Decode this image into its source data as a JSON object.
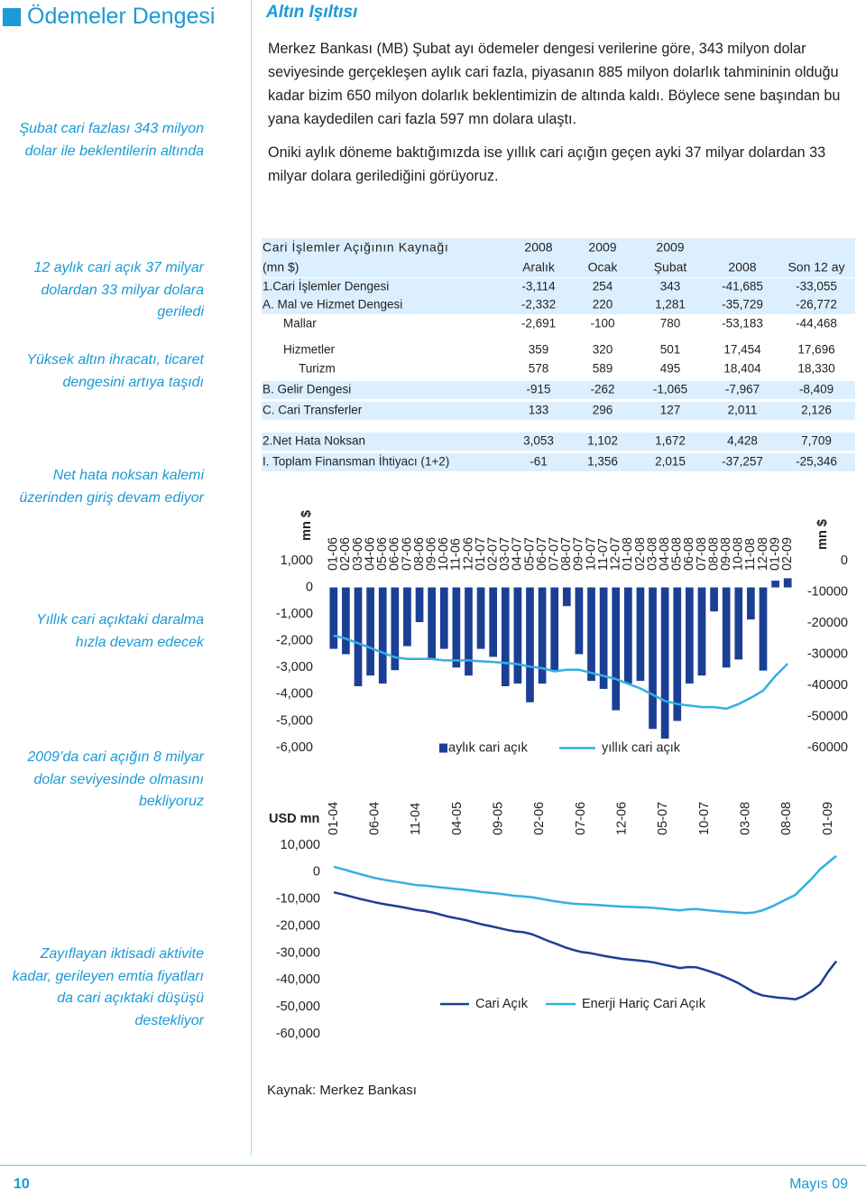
{
  "header": {
    "title": "Ödemeler Dengesi",
    "section": "Altın Işıltısı"
  },
  "paragraphs": [
    "Merkez Bankası (MB) Şubat ayı ödemeler dengesi verilerine göre, 343 milyon dolar seviyesinde gerçekleşen aylık cari fazla, piyasanın 885 milyon dolarlık tahmininin olduğu kadar bizim 650 milyon dolarlık beklentimizin de altında kaldı. Böylece sene başından bu yana kaydedilen cari fazla 597 mn dolara ulaştı.",
    "Oniki aylık döneme baktığımızda ise yıllık cari açığın geçen ayki 37 milyar dolardan 33 milyar dolara gerilediğini görüyoruz."
  ],
  "notes": [
    "Şubat cari fazlası 343 milyon dolar ile beklentilerin altında",
    "12 aylık cari açık 37 milyar dolardan 33 milyar dolara geriledi",
    "Yüksek altın ihracatı, ticaret dengesini artıya taşıdı",
    "Net hata noksan kalemi üzerinden giriş devam ediyor",
    "Yıllık cari açıktaki daralma hızla devam edecek",
    "2009’da cari açığın 8 milyar dolar seviyesinde olmasını bekliyoruz",
    "Zayıflayan iktisadi aktivite kadar, gerileyen emtia fiyatları da cari açıktaki düşüşü destekliyor"
  ],
  "table": {
    "columns": [
      {
        "top": "Cari İşlemler Açığının Kaynağı",
        "bottom": "(mn $)"
      },
      {
        "top": "2008",
        "bottom": "Aralık"
      },
      {
        "top": "2009",
        "bottom": "Ocak"
      },
      {
        "top": "2009",
        "bottom": "Şubat"
      },
      {
        "bottom": "2008"
      },
      {
        "bottom": "Son 12 ay"
      }
    ],
    "rows": [
      [
        "1.Cari İşlemler Dengesi",
        "-3,114",
        "254",
        "343",
        "-41,685",
        "-33,055"
      ],
      [
        "A. Mal ve Hizmet Dengesi",
        "-2,332",
        "220",
        "1,281",
        "-35,729",
        "-26,772"
      ],
      [
        "Mallar",
        "-2,691",
        "-100",
        "780",
        "-53,183",
        "-44,468"
      ],
      [
        "Hizmetler",
        "359",
        "320",
        "501",
        "17,454",
        "17,696"
      ],
      [
        "Turizm",
        "578",
        "589",
        "495",
        "18,404",
        "18,330"
      ],
      [
        "B. Gelir Dengesi",
        "-915",
        "-262",
        "-1,065",
        "-7,967",
        "-8,409"
      ],
      [
        "C. Cari Transferler",
        "133",
        "296",
        "127",
        "2,011",
        "2,126"
      ],
      [
        "2.Net Hata Noksan",
        "3,053",
        "1,102",
        "1,672",
        "4,428",
        "7,709"
      ],
      [
        "I. Toplam Finansman İhtiyacı (1+2)",
        "-61",
        "1,356",
        "2,015",
        "-37,257",
        "-25,346"
      ]
    ]
  },
  "chart_data": [
    {
      "type": "combo",
      "y_label": "mn $",
      "y2_label": "mn $",
      "legend": "bottom",
      "categories": [
        "01-06",
        "02-06",
        "03-06",
        "04-06",
        "05-06",
        "06-06",
        "07-06",
        "08-06",
        "09-06",
        "10-06",
        "11-06",
        "12-06",
        "01-07",
        "02-07",
        "03-07",
        "04-07",
        "05-07",
        "06-07",
        "07-07",
        "08-07",
        "09-07",
        "10-07",
        "11-07",
        "12-07",
        "01-08",
        "02-08",
        "03-08",
        "04-08",
        "05-08",
        "06-08",
        "07-08",
        "08-08",
        "09-08",
        "10-08",
        "11-08",
        "12-08",
        "01-09",
        "02-09"
      ],
      "ylim": [
        -6000,
        1000
      ],
      "yticks": [
        {
          "value": 1000,
          "label": "1,000"
        },
        0,
        {
          "value": -1000,
          "label": "-1,000"
        },
        {
          "value": -2000,
          "label": "-2,000"
        },
        {
          "value": -3000,
          "label": "-3,000"
        },
        {
          "value": -4000,
          "label": "-4,000"
        },
        {
          "value": -5000,
          "label": "-5,000"
        },
        {
          "value": -6000,
          "label": "-6,000"
        }
      ],
      "y2lim": [
        -60000,
        0
      ],
      "y2ticks": [
        0,
        -10000,
        -20000,
        -30000,
        -40000,
        -50000,
        -60000
      ],
      "series": [
        {
          "name": "aylık cari açık",
          "type": "bar",
          "color": "#1b3f94",
          "values": [
            -2300,
            -2500,
            -3700,
            -3300,
            -3600,
            -3100,
            -2200,
            -1300,
            -2700,
            -2300,
            -3000,
            -3300,
            -2300,
            -2600,
            -3700,
            -3600,
            -4300,
            -3600,
            -3100,
            -700,
            -2500,
            -3500,
            -3800,
            -4600,
            -3600,
            -3500,
            -5300,
            -5700,
            -5000,
            -3600,
            -3300,
            -900,
            -3000,
            -2700,
            -1200,
            -3114,
            254,
            343
          ]
        },
        {
          "name": "yıllık cari açık",
          "type": "line",
          "axis": "y2",
          "color": "#35aee4",
          "values": [
            -24000,
            -25000,
            -26500,
            -28000,
            -29500,
            -31000,
            -31500,
            -31500,
            -31500,
            -32000,
            -32000,
            -32000,
            -32300,
            -32500,
            -32800,
            -33200,
            -34000,
            -34500,
            -35500,
            -35000,
            -35000,
            -36000,
            -37000,
            -38000,
            -39500,
            -41000,
            -43000,
            -45000,
            -46000,
            -46500,
            -47000,
            -47000,
            -47500,
            -46000,
            -44000,
            -41685,
            -37000,
            -33055
          ]
        }
      ]
    },
    {
      "type": "line",
      "y_label": "USD mn",
      "legend": "bottom",
      "categories": [
        "01-04",
        null,
        null,
        null,
        null,
        "06-04",
        null,
        null,
        null,
        null,
        "11-04",
        null,
        null,
        null,
        null,
        "04-05",
        null,
        null,
        null,
        null,
        "09-05",
        null,
        null,
        null,
        null,
        "02-06",
        null,
        null,
        null,
        null,
        "07-06",
        null,
        null,
        null,
        null,
        "12-06",
        null,
        null,
        null,
        null,
        "05-07",
        null,
        null,
        null,
        null,
        "10-07",
        null,
        null,
        null,
        null,
        "03-08",
        null,
        null,
        null,
        null,
        "08-08",
        null,
        null,
        null,
        null,
        "01-09",
        null
      ],
      "ylim": [
        -60000,
        10000
      ],
      "yticks": [
        {
          "value": 10000,
          "label": "10,000"
        },
        0,
        {
          "value": -10000,
          "label": "-10,000"
        },
        {
          "value": -20000,
          "label": "-20,000"
        },
        {
          "value": -30000,
          "label": "-30,000"
        },
        {
          "value": -40000,
          "label": "-40,000"
        },
        {
          "value": -50000,
          "label": "-50,000"
        },
        {
          "value": -60000,
          "label": "-60,000"
        }
      ],
      "series": [
        {
          "name": "Cari Açık",
          "color": "#1b3f94",
          "values": [
            -7500,
            -8200,
            -9000,
            -9800,
            -10500,
            -11200,
            -11800,
            -12300,
            -12800,
            -13400,
            -14000,
            -14400,
            -15000,
            -15800,
            -16600,
            -17200,
            -17800,
            -18600,
            -19400,
            -20000,
            -20700,
            -21400,
            -22000,
            -22300,
            -23000,
            -24200,
            -25500,
            -26600,
            -27800,
            -28800,
            -29600,
            -30000,
            -30600,
            -31200,
            -31700,
            -32200,
            -32500,
            -32800,
            -33100,
            -33600,
            -34300,
            -34900,
            -35600,
            -35200,
            -35300,
            -36200,
            -37200,
            -38300,
            -39600,
            -41000,
            -42800,
            -44600,
            -45700,
            -46200,
            -46600,
            -46800,
            -47200,
            -46000,
            -44100,
            -41685,
            -37000,
            -33055
          ]
        },
        {
          "name": "Enerji Hariç Cari Açık",
          "color": "#35aee4",
          "values": [
            2000,
            1200,
            300,
            -600,
            -1400,
            -2200,
            -2800,
            -3300,
            -3800,
            -4300,
            -4800,
            -5000,
            -5300,
            -5700,
            -6000,
            -6300,
            -6600,
            -7000,
            -7400,
            -7700,
            -8000,
            -8400,
            -8800,
            -9000,
            -9300,
            -9800,
            -10400,
            -10900,
            -11300,
            -11700,
            -11900,
            -12000,
            -12200,
            -12400,
            -12600,
            -12800,
            -12900,
            -13000,
            -13100,
            -13300,
            -13600,
            -13900,
            -14200,
            -13800,
            -13700,
            -14000,
            -14300,
            -14600,
            -14800,
            -15000,
            -15200,
            -15000,
            -14200,
            -13000,
            -11500,
            -10000,
            -8500,
            -5500,
            -2500,
            1000,
            3500,
            6000
          ]
        }
      ]
    }
  ],
  "source": "Kaynak: Merkez Bankası",
  "footer": {
    "page": "10",
    "date": "Mayıs 09"
  }
}
